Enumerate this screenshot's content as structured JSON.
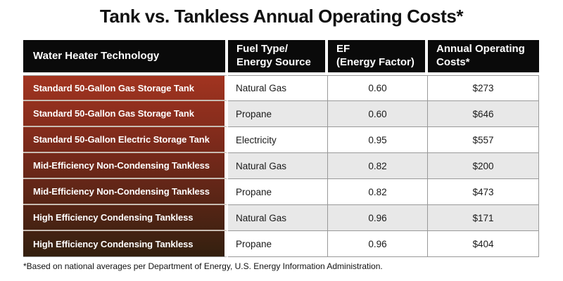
{
  "title": "Tank vs. Tankless Annual Operating Costs*",
  "footnote": "*Based on national averages per Department of Energy, U.S. Energy Information Administration.",
  "table": {
    "headers": [
      {
        "label": "Water Heater Technology"
      },
      {
        "label": "Fuel Type/\nEnergy Source"
      },
      {
        "label": "EF\n(Energy Factor)"
      },
      {
        "label": "Annual Operating\nCosts*"
      }
    ],
    "rows": [
      {
        "technology": "Standard 50-Gallon Gas Storage Tank",
        "fuel": "Natural Gas",
        "ef": "0.60",
        "cost": "$273"
      },
      {
        "technology": "Standard 50-Gallon Gas Storage Tank",
        "fuel": "Propane",
        "ef": "0.60",
        "cost": "$646"
      },
      {
        "technology": "Standard 50-Gallon Electric Storage Tank",
        "fuel": "Electricity",
        "ef": "0.95",
        "cost": "$557"
      },
      {
        "technology": "Mid-Efficiency Non-Condensing Tankless",
        "fuel": "Natural Gas",
        "ef": "0.82",
        "cost": "$200"
      },
      {
        "technology": "Mid-Efficiency Non-Condensing Tankless",
        "fuel": "Propane",
        "ef": "0.82",
        "cost": "$473"
      },
      {
        "technology": "High Efficiency Condensing Tankless",
        "fuel": "Natural Gas",
        "ef": "0.96",
        "cost": "$171"
      },
      {
        "technology": "High Efficiency Condensing Tankless",
        "fuel": "Propane",
        "ef": "0.96",
        "cost": "$404"
      }
    ]
  },
  "colors": {
    "header_bg": "#0a0a0a",
    "header_text": "#ffffff",
    "tech_gradient_top": "#a23420",
    "tech_gradient_bottom": "#33200f",
    "tech_text": "#ffffff",
    "row_bg": "#ffffff",
    "row_alt_bg": "#e8e8e8",
    "grid_line": "#999999",
    "tech_separator": "#c8bcb2"
  },
  "chart_data": {
    "type": "table",
    "title": "Tank vs. Tankless Annual Operating Costs*",
    "columns": [
      "Water Heater Technology",
      "Fuel Type/Energy Source",
      "EF (Energy Factor)",
      "Annual Operating Costs*"
    ],
    "rows": [
      [
        "Standard 50-Gallon Gas Storage Tank",
        "Natural Gas",
        0.6,
        273
      ],
      [
        "Standard 50-Gallon Gas Storage Tank",
        "Propane",
        0.6,
        646
      ],
      [
        "Standard 50-Gallon Electric Storage Tank",
        "Electricity",
        0.95,
        557
      ],
      [
        "Mid-Efficiency Non-Condensing Tankless",
        "Natural Gas",
        0.82,
        200
      ],
      [
        "Mid-Efficiency Non-Condensing Tankless",
        "Propane",
        0.82,
        473
      ],
      [
        "High Efficiency Condensing Tankless",
        "Natural Gas",
        0.96,
        171
      ],
      [
        "High Efficiency Condensing Tankless",
        "Propane",
        0.96,
        404
      ]
    ],
    "footnote": "*Based on national averages per Department of Energy, U.S. Energy Information Administration."
  }
}
